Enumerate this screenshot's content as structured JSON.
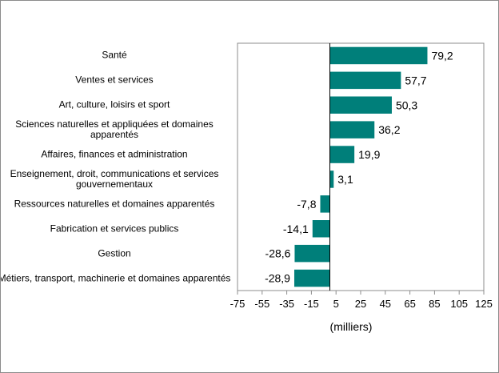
{
  "chart_data": {
    "type": "bar",
    "orientation": "horizontal",
    "categories": [
      "Santé",
      "Ventes et services",
      "Art, culture, loisirs et sport",
      "Sciences naturelles et appliquées et domaines apparentés",
      "Affaires, finances et administration",
      "Enseignement, droit, communications et services gouvernementaux",
      "Ressources naturelles et domaines apparentés",
      "Fabrication et services publics",
      "Gestion",
      "Métiers, transport, machinerie et domaines apparentés"
    ],
    "values": [
      79.2,
      57.7,
      50.3,
      36.2,
      19.9,
      3.1,
      -7.8,
      -14.1,
      -28.6,
      -28.9
    ],
    "value_labels": [
      "79,2",
      "57,7",
      "50,3",
      "36,2",
      "19,9",
      "3,1",
      "-7,8",
      "-14,1",
      "-28,6",
      "-28,9"
    ],
    "xlim": [
      -75,
      125
    ],
    "xticks": [
      -75,
      -55,
      -35,
      -15,
      5,
      25,
      45,
      65,
      85,
      105,
      125
    ],
    "xlabel": "(milliers)",
    "bar_color": "#007f7a",
    "grid": false
  }
}
